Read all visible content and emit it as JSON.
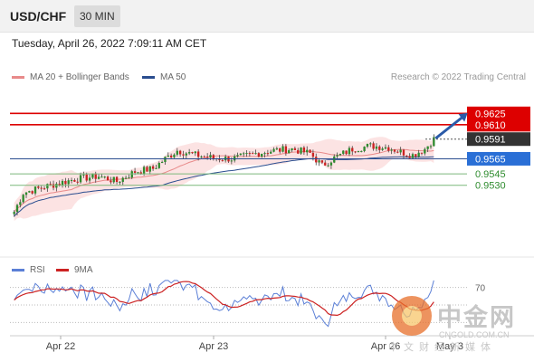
{
  "header": {
    "symbol": "USD/CHF",
    "timeframe": "30 MIN"
  },
  "datetime": "Tuesday, April 26, 2022 7:09:11 AM CET",
  "legend": {
    "ma20_label": "MA 20 + Bollinger Bands",
    "ma50_label": "MA 50",
    "credit": "Research © 2022 Trading Central",
    "ma20_color": "#e88a8a",
    "ma50_color": "#2a4d8f"
  },
  "rsi_legend": {
    "rsi_label": "RSI",
    "ma9_label": "9MA",
    "rsi_color": "#5b7fd6",
    "ma9_color": "#cc2222"
  },
  "watermark": {
    "cn": "中金网",
    "en": "CNGOLD.COM.CN",
    "sub": "中文财经新媒体"
  },
  "chart_data": {
    "type": "candlestick",
    "x_ticks": [
      "Apr 22",
      "Apr 23",
      "Apr 26",
      "May 3"
    ],
    "ylim": [
      0.944,
      0.966
    ],
    "levels": [
      {
        "value": 0.9625,
        "label": "0.9625",
        "role": "resistance",
        "color": "#dd0000"
      },
      {
        "value": 0.961,
        "label": "0.9610",
        "role": "resistance",
        "color": "#dd0000"
      },
      {
        "value": 0.9591,
        "label": "0.9591",
        "role": "last",
        "color": "#333333"
      },
      {
        "value": 0.9565,
        "label": "0.9565",
        "role": "pivot",
        "color": "#2a6fd6"
      },
      {
        "value": 0.9545,
        "label": "0.9545",
        "role": "support",
        "color": "#2e8b2e"
      },
      {
        "value": 0.953,
        "label": "0.9530",
        "role": "support",
        "color": "#2e8b2e"
      }
    ],
    "rsi": {
      "ylim": [
        20,
        80
      ],
      "ticks": [
        70
      ]
    }
  }
}
